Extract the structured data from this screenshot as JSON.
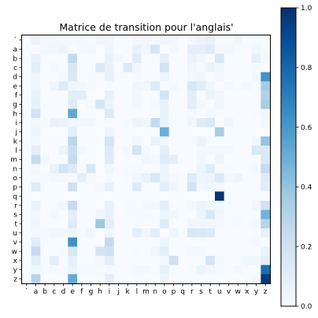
{
  "chart_data": {
    "type": "heatmap",
    "title": "Matrice de transition pour l'anglais'",
    "xlabel": "",
    "ylabel": "",
    "x_labels": [
      "`",
      "a",
      "b",
      "c",
      "d",
      "e",
      "f",
      "g",
      "h",
      "i",
      "j",
      "k",
      "l",
      "m",
      "n",
      "o",
      "p",
      "q",
      "r",
      "s",
      "t",
      "u",
      "v",
      "w",
      "x",
      "y",
      "z"
    ],
    "y_labels": [
      "`",
      "a",
      "b",
      "c",
      "d",
      "e",
      "f",
      "g",
      "h",
      "i",
      "j",
      "k",
      "l",
      "m",
      "n",
      "o",
      "p",
      "q",
      "r",
      "s",
      "t",
      "u",
      "v",
      "w",
      "x",
      "y",
      "z"
    ],
    "colormap": "Blues",
    "colorbar": {
      "min": 0.0,
      "max": 1.0,
      "ticks": [
        "0.0",
        "0.2",
        "0.4",
        "0.6",
        "0.8",
        "1.0"
      ]
    },
    "values": [
      [
        0.0,
        0.06,
        0.03,
        0.03,
        0.02,
        0.02,
        0.02,
        0.01,
        0.04,
        0.03,
        0.0,
        0.0,
        0.02,
        0.03,
        0.02,
        0.04,
        0.03,
        0.0,
        0.02,
        0.06,
        0.08,
        0.01,
        0.01,
        0.04,
        0.0,
        0.01,
        0.0
      ],
      [
        0.0,
        0.0,
        0.03,
        0.04,
        0.05,
        0.0,
        0.02,
        0.03,
        0.0,
        0.04,
        0.0,
        0.01,
        0.07,
        0.03,
        0.17,
        0.0,
        0.02,
        0.0,
        0.09,
        0.09,
        0.12,
        0.02,
        0.03,
        0.01,
        0.0,
        0.04,
        0.01
      ],
      [
        0.0,
        0.07,
        0.01,
        0.0,
        0.0,
        0.26,
        0.0,
        0.0,
        0.0,
        0.07,
        0.02,
        0.0,
        0.11,
        0.0,
        0.0,
        0.09,
        0.0,
        0.0,
        0.06,
        0.03,
        0.01,
        0.16,
        0.0,
        0.0,
        0.0,
        0.09,
        0.02
      ],
      [
        0.0,
        0.11,
        0.0,
        0.02,
        0.0,
        0.15,
        0.0,
        0.0,
        0.14,
        0.07,
        0.0,
        0.14,
        0.04,
        0.0,
        0.0,
        0.18,
        0.0,
        0.0,
        0.04,
        0.01,
        0.06,
        0.04,
        0.0,
        0.0,
        0.0,
        0.01,
        0.0
      ],
      [
        0.0,
        0.04,
        0.0,
        0.0,
        0.02,
        0.14,
        0.0,
        0.01,
        0.0,
        0.08,
        0.0,
        0.0,
        0.01,
        0.0,
        0.0,
        0.05,
        0.0,
        0.0,
        0.03,
        0.04,
        0.0,
        0.02,
        0.0,
        0.0,
        0.0,
        0.03,
        0.62
      ],
      [
        0.0,
        0.04,
        0.0,
        0.04,
        0.12,
        0.04,
        0.02,
        0.01,
        0.0,
        0.01,
        0.0,
        0.0,
        0.04,
        0.03,
        0.12,
        0.01,
        0.02,
        0.0,
        0.16,
        0.11,
        0.04,
        0.0,
        0.02,
        0.01,
        0.02,
        0.01,
        0.35
      ],
      [
        0.0,
        0.07,
        0.0,
        0.0,
        0.0,
        0.1,
        0.1,
        0.0,
        0.0,
        0.08,
        0.0,
        0.0,
        0.03,
        0.0,
        0.0,
        0.18,
        0.0,
        0.0,
        0.1,
        0.0,
        0.06,
        0.04,
        0.0,
        0.0,
        0.0,
        0.0,
        0.32
      ],
      [
        0.0,
        0.08,
        0.0,
        0.0,
        0.0,
        0.12,
        0.0,
        0.02,
        0.17,
        0.06,
        0.0,
        0.0,
        0.03,
        0.0,
        0.02,
        0.07,
        0.0,
        0.0,
        0.1,
        0.03,
        0.0,
        0.04,
        0.0,
        0.0,
        0.0,
        0.0,
        0.35
      ],
      [
        0.0,
        0.19,
        0.0,
        0.0,
        0.0,
        0.53,
        0.0,
        0.0,
        0.0,
        0.13,
        0.0,
        0.0,
        0.0,
        0.0,
        0.0,
        0.07,
        0.0,
        0.0,
        0.02,
        0.0,
        0.02,
        0.01,
        0.0,
        0.0,
        0.0,
        0.01,
        0.04
      ],
      [
        0.0,
        0.03,
        0.01,
        0.07,
        0.06,
        0.04,
        0.03,
        0.03,
        0.0,
        0.0,
        0.0,
        0.01,
        0.05,
        0.04,
        0.25,
        0.07,
        0.01,
        0.0,
        0.04,
        0.12,
        0.14,
        0.0,
        0.04,
        0.0,
        0.0,
        0.0,
        0.03
      ],
      [
        0.0,
        0.05,
        0.0,
        0.0,
        0.0,
        0.1,
        0.0,
        0.0,
        0.0,
        0.05,
        0.0,
        0.0,
        0.0,
        0.0,
        0.0,
        0.5,
        0.0,
        0.0,
        0.0,
        0.0,
        0.0,
        0.35,
        0.0,
        0.0,
        0.0,
        0.0,
        0.0
      ],
      [
        0.0,
        0.03,
        0.0,
        0.0,
        0.0,
        0.28,
        0.0,
        0.0,
        0.0,
        0.18,
        0.0,
        0.0,
        0.03,
        0.0,
        0.07,
        0.03,
        0.0,
        0.0,
        0.0,
        0.06,
        0.0,
        0.0,
        0.0,
        0.0,
        0.0,
        0.04,
        0.4
      ],
      [
        0.0,
        0.1,
        0.0,
        0.0,
        0.06,
        0.22,
        0.02,
        0.0,
        0.0,
        0.13,
        0.0,
        0.02,
        0.18,
        0.02,
        0.0,
        0.1,
        0.0,
        0.0,
        0.0,
        0.03,
        0.02,
        0.02,
        0.02,
        0.0,
        0.0,
        0.15,
        0.14
      ],
      [
        0.0,
        0.24,
        0.03,
        0.0,
        0.0,
        0.24,
        0.0,
        0.0,
        0.0,
        0.12,
        0.0,
        0.0,
        0.0,
        0.03,
        0.02,
        0.12,
        0.1,
        0.0,
        0.0,
        0.04,
        0.0,
        0.05,
        0.0,
        0.0,
        0.0,
        0.0,
        0.14
      ],
      [
        0.0,
        0.03,
        0.0,
        0.07,
        0.18,
        0.13,
        0.01,
        0.16,
        0.0,
        0.04,
        0.0,
        0.01,
        0.01,
        0.0,
        0.01,
        0.05,
        0.0,
        0.0,
        0.0,
        0.05,
        0.12,
        0.01,
        0.01,
        0.0,
        0.0,
        0.02,
        0.25
      ],
      [
        0.0,
        0.01,
        0.01,
        0.02,
        0.02,
        0.01,
        0.09,
        0.01,
        0.0,
        0.01,
        0.0,
        0.01,
        0.04,
        0.07,
        0.16,
        0.05,
        0.02,
        0.0,
        0.13,
        0.04,
        0.05,
        0.14,
        0.02,
        0.05,
        0.0,
        0.0,
        0.12
      ],
      [
        0.0,
        0.13,
        0.0,
        0.0,
        0.0,
        0.2,
        0.0,
        0.0,
        0.02,
        0.08,
        0.0,
        0.0,
        0.12,
        0.0,
        0.0,
        0.1,
        0.04,
        0.0,
        0.18,
        0.03,
        0.04,
        0.03,
        0.0,
        0.0,
        0.0,
        0.0,
        0.1
      ],
      [
        0.0,
        0.0,
        0.0,
        0.0,
        0.0,
        0.0,
        0.0,
        0.0,
        0.0,
        0.0,
        0.0,
        0.0,
        0.0,
        0.0,
        0.0,
        0.0,
        0.0,
        0.0,
        0.0,
        0.0,
        0.0,
        0.98,
        0.0,
        0.0,
        0.0,
        0.0,
        0.0
      ],
      [
        0.0,
        0.07,
        0.0,
        0.01,
        0.03,
        0.25,
        0.0,
        0.01,
        0.0,
        0.08,
        0.0,
        0.01,
        0.01,
        0.02,
        0.02,
        0.1,
        0.01,
        0.0,
        0.02,
        0.06,
        0.04,
        0.02,
        0.01,
        0.0,
        0.0,
        0.03,
        0.2
      ],
      [
        0.0,
        0.03,
        0.0,
        0.02,
        0.0,
        0.1,
        0.0,
        0.0,
        0.04,
        0.07,
        0.0,
        0.01,
        0.01,
        0.01,
        0.0,
        0.05,
        0.03,
        0.0,
        0.0,
        0.05,
        0.15,
        0.04,
        0.0,
        0.01,
        0.0,
        0.0,
        0.48
      ],
      [
        0.0,
        0.04,
        0.0,
        0.0,
        0.0,
        0.12,
        0.0,
        0.0,
        0.38,
        0.1,
        0.0,
        0.0,
        0.01,
        0.0,
        0.0,
        0.12,
        0.0,
        0.0,
        0.04,
        0.03,
        0.02,
        0.02,
        0.0,
        0.01,
        0.0,
        0.02,
        0.3
      ],
      [
        0.0,
        0.02,
        0.02,
        0.04,
        0.03,
        0.05,
        0.01,
        0.04,
        0.0,
        0.04,
        0.0,
        0.0,
        0.09,
        0.04,
        0.1,
        0.0,
        0.04,
        0.0,
        0.15,
        0.14,
        0.13,
        0.0,
        0.0,
        0.0,
        0.0,
        0.0,
        0.08
      ],
      [
        0.0,
        0.11,
        0.0,
        0.0,
        0.0,
        0.63,
        0.0,
        0.0,
        0.0,
        0.25,
        0.0,
        0.0,
        0.0,
        0.0,
        0.0,
        0.05,
        0.0,
        0.0,
        0.0,
        0.0,
        0.0,
        0.0,
        0.0,
        0.0,
        0.0,
        0.02,
        0.0
      ],
      [
        0.0,
        0.25,
        0.0,
        0.0,
        0.01,
        0.15,
        0.0,
        0.0,
        0.18,
        0.2,
        0.0,
        0.0,
        0.01,
        0.0,
        0.04,
        0.1,
        0.0,
        0.0,
        0.02,
        0.02,
        0.0,
        0.0,
        0.0,
        0.0,
        0.0,
        0.0,
        0.06
      ],
      [
        0.0,
        0.1,
        0.0,
        0.1,
        0.0,
        0.08,
        0.0,
        0.0,
        0.02,
        0.1,
        0.0,
        0.0,
        0.0,
        0.0,
        0.0,
        0.02,
        0.2,
        0.0,
        0.0,
        0.0,
        0.18,
        0.02,
        0.0,
        0.0,
        0.04,
        0.04,
        0.1
      ],
      [
        0.0,
        0.04,
        0.01,
        0.02,
        0.01,
        0.06,
        0.01,
        0.01,
        0.01,
        0.02,
        0.0,
        0.0,
        0.02,
        0.02,
        0.01,
        0.08,
        0.01,
        0.0,
        0.01,
        0.06,
        0.03,
        0.01,
        0.0,
        0.02,
        0.0,
        0.0,
        0.77
      ],
      [
        0.0,
        0.3,
        0.0,
        0.0,
        0.0,
        0.52,
        0.0,
        0.0,
        0.0,
        0.1,
        0.0,
        0.0,
        0.01,
        0.0,
        0.0,
        0.05,
        0.0,
        0.0,
        0.0,
        0.0,
        0.0,
        0.0,
        0.0,
        0.0,
        0.0,
        0.02,
        0.96
      ]
    ]
  }
}
